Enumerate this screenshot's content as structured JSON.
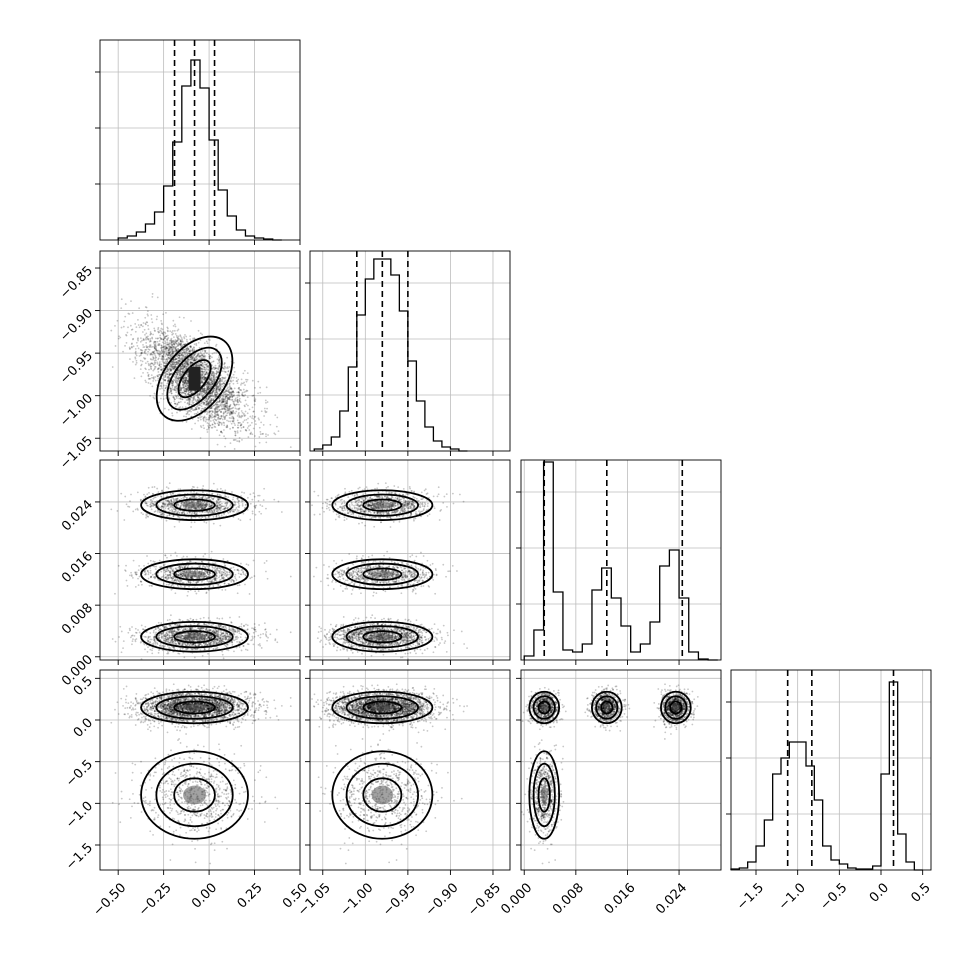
{
  "chart_data": {
    "type": "corner",
    "n_params": 4,
    "grid": true,
    "params": [
      {
        "range": [
          -0.6,
          0.5
        ],
        "ticks": [
          -0.5,
          -0.25,
          0.0,
          0.25,
          0.5
        ],
        "tick_labels": [
          "−0.50",
          "−0.25",
          "0.00",
          "0.25",
          "0.50"
        ],
        "quantiles": [
          -0.19,
          -0.08,
          0.03
        ],
        "hist_x": [
          -0.5,
          -0.45,
          -0.4,
          -0.35,
          -0.3,
          -0.25,
          -0.2,
          -0.15,
          -0.1,
          -0.05,
          0.0,
          0.05,
          0.1,
          0.15,
          0.2,
          0.25,
          0.3,
          0.35
        ],
        "hist_y": [
          0.01,
          0.02,
          0.04,
          0.08,
          0.14,
          0.27,
          0.49,
          0.77,
          0.9,
          0.76,
          0.5,
          0.25,
          0.12,
          0.05,
          0.02,
          0.01,
          0.005,
          0
        ]
      },
      {
        "range": [
          -1.065,
          -0.83
        ],
        "ticks": [
          -1.05,
          -1.0,
          -0.95,
          -0.9,
          -0.85
        ],
        "tick_labels": [
          "−1.05",
          "−1.00",
          "−0.95",
          "−0.90",
          "−0.85"
        ],
        "quantiles": [
          -1.01,
          -0.98,
          -0.95
        ],
        "hist_x": [
          -1.06,
          -1.05,
          -1.04,
          -1.03,
          -1.02,
          -1.01,
          -1.0,
          -0.99,
          -0.98,
          -0.97,
          -0.96,
          -0.95,
          -0.94,
          -0.93,
          -0.92,
          -0.91,
          -0.9,
          -0.89
        ],
        "hist_y": [
          0.01,
          0.03,
          0.07,
          0.2,
          0.42,
          0.68,
          0.86,
          0.96,
          0.96,
          0.88,
          0.7,
          0.45,
          0.25,
          0.12,
          0.05,
          0.02,
          0.01,
          0
        ]
      },
      {
        "range": [
          -0.0005,
          0.0305
        ],
        "ticks": [
          0.0,
          0.008,
          0.016,
          0.024
        ],
        "tick_labels": [
          "0.000",
          "0.008",
          "0.016",
          "0.024"
        ],
        "quantiles": [
          0.0031,
          0.0128,
          0.0245
        ],
        "hist_x": [
          0.0,
          0.0015,
          0.003,
          0.0045,
          0.006,
          0.0075,
          0.009,
          0.0105,
          0.012,
          0.0135,
          0.015,
          0.0165,
          0.018,
          0.0195,
          0.021,
          0.0225,
          0.024,
          0.0255,
          0.027,
          0.0285
        ],
        "hist_y": [
          0.02,
          0.15,
          0.99,
          0.34,
          0.05,
          0.04,
          0.08,
          0.35,
          0.46,
          0.31,
          0.17,
          0.04,
          0.08,
          0.19,
          0.47,
          0.55,
          0.31,
          0.04,
          0.005,
          0
        ]
      },
      {
        "range": [
          -1.8,
          0.6
        ],
        "ticks": [
          -1.5,
          -1.0,
          -0.5,
          0.0,
          0.5
        ],
        "tick_labels": [
          "−1.5",
          "−1.0",
          "−0.5",
          "0.0",
          "0.5"
        ],
        "quantiles": [
          -1.12,
          -0.83,
          0.15
        ],
        "hist_x": [
          -1.8,
          -1.7,
          -1.6,
          -1.5,
          -1.4,
          -1.3,
          -1.2,
          -1.1,
          -1.0,
          -0.9,
          -0.8,
          -0.7,
          -0.6,
          -0.5,
          -0.4,
          -0.3,
          -0.2,
          -0.1,
          0.0,
          0.1,
          0.2,
          0.3,
          0.4
        ],
        "hist_y": [
          0.005,
          0.01,
          0.04,
          0.12,
          0.25,
          0.48,
          0.56,
          0.64,
          0.64,
          0.52,
          0.35,
          0.12,
          0.05,
          0.03,
          0.01,
          0.005,
          0.005,
          0.02,
          0.48,
          0.94,
          0.18,
          0.04,
          0
        ]
      }
    ],
    "clusters": [
      {
        "p2": 0.0235,
        "p3": 0.15,
        "w": 0.56,
        "rho01": -0.65,
        "amp": 0.9
      },
      {
        "p2": 0.0128,
        "p3": 0.15,
        "w": 0.44,
        "rho01": -0.65,
        "amp": 0.75
      },
      {
        "p2": 0.0031,
        "p3": 0.15,
        "w": 0.34,
        "rho01": -0.65,
        "amp": 1.0
      },
      {
        "p2": 0.0031,
        "p3": -0.9,
        "w": 0.56,
        "rho01": -0.65,
        "amp": 0.7
      }
    ]
  }
}
